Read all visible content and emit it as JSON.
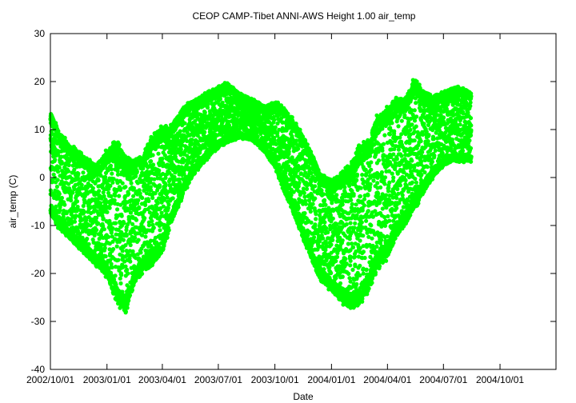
{
  "chart_data": {
    "type": "scatter",
    "title": "CEOP CAMP-Tibet ANNI-AWS Height 1.00 air_temp",
    "xlabel": "Date",
    "ylabel": "air_temp (C)",
    "xlim": [
      "2002-10-01",
      "2004-12-31"
    ],
    "ylim": [
      -40,
      30
    ],
    "yticks": [
      -40,
      -30,
      -20,
      -10,
      0,
      10,
      20,
      30
    ],
    "xticks": [
      "2002-10-01",
      "2003-01-01",
      "2003-04-01",
      "2003-07-01",
      "2003-10-01",
      "2004-01-01",
      "2004-04-01",
      "2004-07-01",
      "2004-10-01"
    ],
    "xtick_labels": [
      "2002/10/01",
      "2003/01/01",
      "2003/04/01",
      "2003/07/01",
      "2003/10/01",
      "2004/01/01",
      "2004/04/01",
      "2004/07/01",
      "2004/10/01"
    ],
    "grid": false,
    "color": "#00ff00",
    "series": [
      {
        "x": [
          "2002-10-01",
          "2002-10-15",
          "2002-11-01",
          "2002-11-15",
          "2002-12-01",
          "2002-12-15",
          "2003-01-01",
          "2003-01-15",
          "2003-02-01",
          "2003-02-15",
          "2003-03-01",
          "2003-03-15",
          "2003-04-01",
          "2003-04-15",
          "2003-05-01",
          "2003-05-15",
          "2003-06-01",
          "2003-06-15",
          "2003-07-01",
          "2003-07-15",
          "2003-08-01",
          "2003-08-15",
          "2003-09-01",
          "2003-09-15",
          "2003-10-01",
          "2003-10-15",
          "2003-11-01",
          "2003-11-15",
          "2003-12-01",
          "2003-12-15",
          "2004-01-01",
          "2004-01-15",
          "2004-02-01",
          "2004-02-15",
          "2004-03-01",
          "2004-03-15",
          "2004-04-01",
          "2004-04-15",
          "2004-05-01",
          "2004-05-15",
          "2004-06-01",
          "2004-06-15",
          "2004-07-01",
          "2004-07-15",
          "2004-08-01",
          "2004-08-15"
        ],
        "y_min": [
          -8,
          -11,
          -13,
          -15,
          -17,
          -19,
          -21,
          -26,
          -29,
          -22,
          -20,
          -19,
          -16,
          -10,
          -5,
          -1,
          2,
          4,
          6,
          7,
          8,
          8,
          7,
          5,
          2,
          -3,
          -8,
          -13,
          -18,
          -22,
          -24,
          -26,
          -28,
          -27,
          -24,
          -20,
          -17,
          -13,
          -10,
          -7,
          -3,
          0,
          2,
          3,
          3,
          3
        ],
        "y_max": [
          14,
          10,
          7,
          6,
          4,
          3,
          6,
          8,
          5,
          4,
          5,
          9,
          11,
          11,
          14,
          16,
          17,
          18,
          19,
          20,
          18,
          17,
          16,
          15,
          16,
          15,
          12,
          9,
          5,
          1,
          0,
          1,
          3,
          7,
          8,
          13,
          15,
          17,
          17,
          21,
          18,
          17,
          18,
          19,
          19,
          18
        ]
      }
    ]
  }
}
